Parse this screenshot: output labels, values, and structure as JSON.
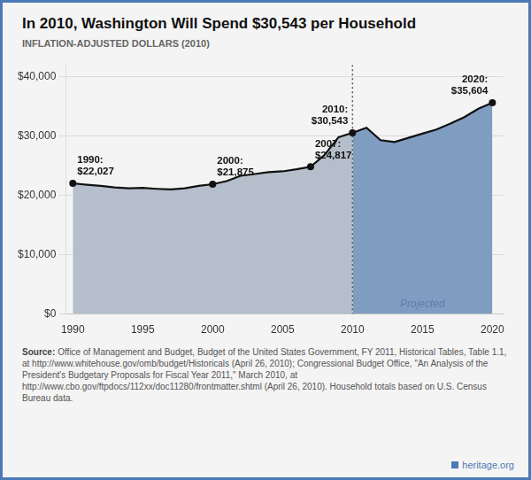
{
  "chart_data": {
    "type": "area",
    "title": "In 2010, Washington Will Spend $30,543 per Household",
    "subtitle": "INFLATION-ADJUSTED DOLLARS (2010)",
    "x": [
      1990,
      1991,
      1992,
      1993,
      1994,
      1995,
      1996,
      1997,
      1998,
      1999,
      2000,
      2001,
      2002,
      2003,
      2004,
      2005,
      2006,
      2007,
      2008,
      2009,
      2010,
      2011,
      2012,
      2013,
      2014,
      2015,
      2016,
      2017,
      2018,
      2019,
      2020
    ],
    "values": [
      22027,
      21800,
      21600,
      21350,
      21200,
      21250,
      21100,
      21000,
      21200,
      21600,
      21875,
      22400,
      23300,
      23600,
      23900,
      24050,
      24400,
      24817,
      26800,
      29800,
      30543,
      31400,
      29300,
      29000,
      29700,
      30400,
      31100,
      32100,
      33200,
      34600,
      35604
    ],
    "color": "#111111",
    "regions": [
      {
        "from": 1990,
        "to": 2010,
        "color": "#b5bfcc"
      },
      {
        "from": 2010,
        "to": 2020,
        "color": "#7f9dc0",
        "label": "Projected"
      }
    ],
    "split_x": 2010,
    "annotations": [
      {
        "x": 1990,
        "y": 22027,
        "text": "1990:\n$22,027"
      },
      {
        "x": 2000,
        "y": 21875,
        "text": "2000:\n$21,875"
      },
      {
        "x": 2007,
        "y": 24817,
        "text": "2007:\n$24,817"
      },
      {
        "x": 2010,
        "y": 30543,
        "text": "2010:\n$30,543"
      },
      {
        "x": 2020,
        "y": 35604,
        "text": "2020:\n$35,604"
      }
    ],
    "xlim": [
      1989.5,
      2020.8
    ],
    "xticks": [
      1990,
      1995,
      2000,
      2005,
      2010,
      2015,
      2020
    ],
    "ylim": [
      0,
      42000
    ],
    "yticks": [
      {
        "value": 0,
        "label": "$0"
      },
      {
        "value": 10000,
        "label": "$10,000"
      },
      {
        "value": 20000,
        "label": "$20,000"
      },
      {
        "value": 30000,
        "label": "$30,000"
      },
      {
        "value": 40000,
        "label": "$40,000"
      }
    ],
    "grid": "y",
    "source": {
      "label": "Source:",
      "text": "Office of Management and Budget, Budget of the United States Government, FY 2011, Historical Tables, Table 1.1, at http://www.whitehouse.gov/omb/budget/Historicals (April 26, 2010); Congressional Budget Office, \"An Analysis of the President's Budgetary Proposals for Fiscal Year 2011,\" March 2010, at http://www.cbo.gov/ftpdocs/112xx/doc11280/frontmatter.shtml (April 26, 2010). Household totals based on U.S. Census Bureau data."
    },
    "credit": "heritage.org"
  }
}
